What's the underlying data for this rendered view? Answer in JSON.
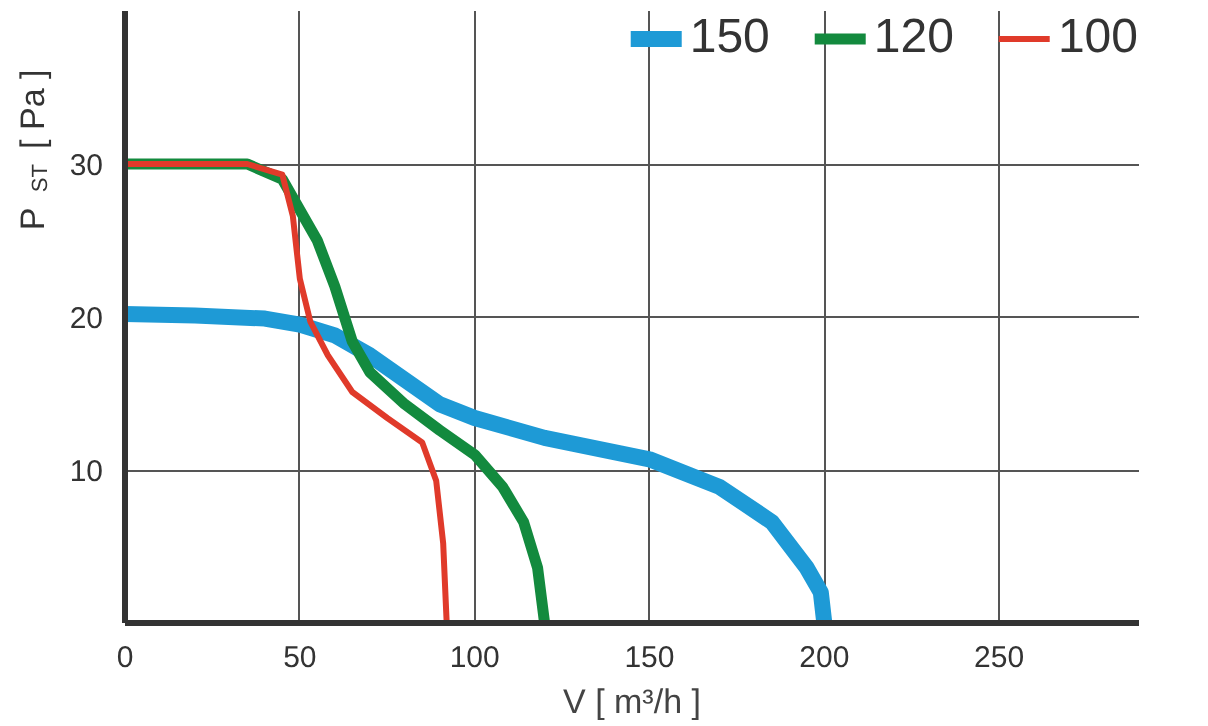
{
  "chart_data": {
    "type": "line",
    "xlabel": "V [ m³/h ]",
    "ylabel": "P$_{ST}$ [ Pa ]",
    "xlim": [
      0,
      290
    ],
    "ylim": [
      0,
      40
    ],
    "xticks": [
      0,
      50,
      100,
      150,
      200,
      250
    ],
    "yticks": [
      10,
      20,
      30
    ],
    "grid": true,
    "legend": "top right",
    "marker": "none",
    "line_style": "solid",
    "series": [
      {
        "name": "150",
        "color": "#1e9ad6",
        "x": [
          0,
          20,
          40,
          50,
          60,
          70,
          80,
          90,
          100,
          120,
          150,
          170,
          185,
          195,
          199,
          200
        ],
        "values": [
          20.2,
          20.1,
          19.9,
          19.5,
          18.8,
          17.5,
          15.9,
          14.3,
          13.4,
          12.1,
          10.7,
          8.9,
          6.6,
          3.6,
          2,
          0
        ]
      },
      {
        "name": "120",
        "color": "#138a3e",
        "x": [
          0,
          20,
          35,
          45,
          55,
          60,
          65,
          70,
          80,
          90,
          100,
          108,
          114,
          118,
          120
        ],
        "values": [
          30,
          30,
          30,
          29,
          25,
          22,
          18.4,
          16.4,
          14.3,
          12.6,
          11,
          8.9,
          6.6,
          3.6,
          0
        ]
      },
      {
        "name": "100",
        "color": "#e03a2a",
        "x": [
          0,
          20,
          35,
          45,
          48,
          50,
          53,
          58,
          65,
          75,
          85,
          89,
          91,
          92
        ],
        "values": [
          30,
          30,
          30,
          29.3,
          26.6,
          22.5,
          19.7,
          17.5,
          15.1,
          13.4,
          11.8,
          9.3,
          5.2,
          0
        ]
      }
    ]
  }
}
